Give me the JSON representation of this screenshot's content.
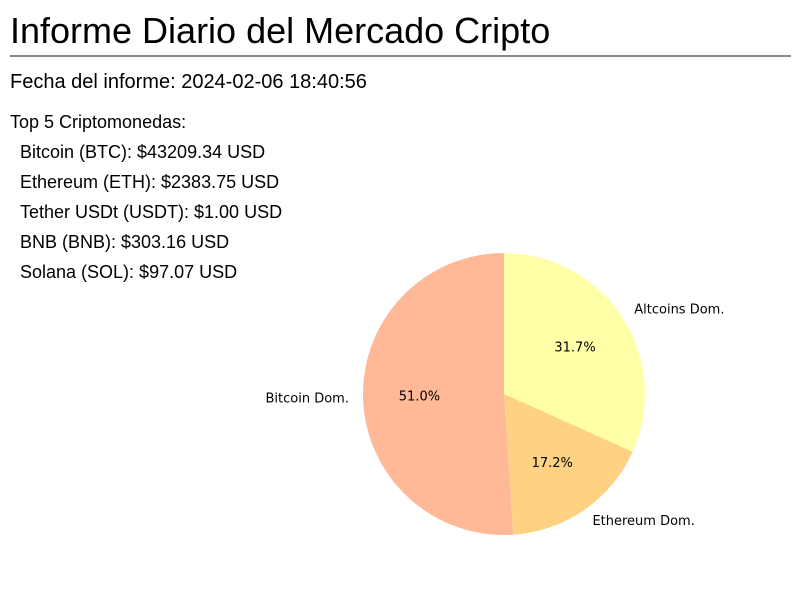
{
  "report": {
    "title": "Informe Diario del Mercado Cripto",
    "date_label": "Fecha del informe: 2024-02-06 18:40:56",
    "top_heading": "Top 5 Criptomonedas:",
    "coins": [
      {
        "text": "Bitcoin (BTC): $43209.34 USD"
      },
      {
        "text": "Ethereum (ETH): $2383.75 USD"
      },
      {
        "text": "Tether USDt (USDT): $1.00 USD"
      },
      {
        "text": "BNB (BNB): $303.16 USD"
      },
      {
        "text": "Solana (SOL): $97.07 USD"
      }
    ]
  },
  "chart_data": {
    "type": "pie",
    "categories": [
      "Altcoins Dom.",
      "Ethereum Dom.",
      "Bitcoin Dom."
    ],
    "values": [
      31.7,
      17.2,
      51.0
    ],
    "value_labels": [
      "31.7%",
      "17.2%",
      "51.0%"
    ],
    "colors": [
      "#ffffa8",
      "#ffd183",
      "#ffb997"
    ],
    "start_angle_deg": 90,
    "direction": "clockwise"
  }
}
